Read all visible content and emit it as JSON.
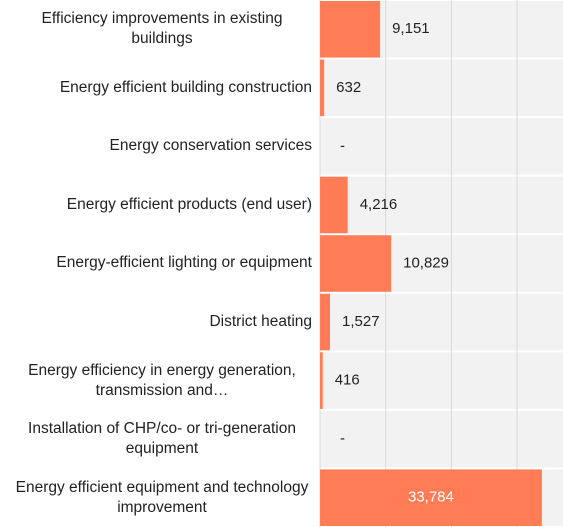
{
  "chart_data": {
    "type": "hbar",
    "categories": [
      "Efficiency improvements in existing buildings",
      "Energy efficient building construction",
      "Energy conservation services",
      "Energy efficient products (end user)",
      "Energy-efficient lighting or equipment",
      "District heating",
      "Energy efficiency in energy generation, transmission and…",
      "Installation of CHP/co- or tri-generation equipment",
      "Energy efficient equipment and technology improvement"
    ],
    "values": [
      9151,
      632,
      null,
      4216,
      10829,
      1527,
      416,
      null,
      33784
    ],
    "value_labels": [
      "9,151",
      "632",
      "-",
      "4,216",
      "10,829",
      "1,527",
      "416",
      "-",
      "33,784"
    ],
    "color": "#ff7c56",
    "xlim": [
      0,
      37000
    ],
    "xticks": [
      0,
      10000,
      20000,
      30000
    ],
    "grid": true
  }
}
